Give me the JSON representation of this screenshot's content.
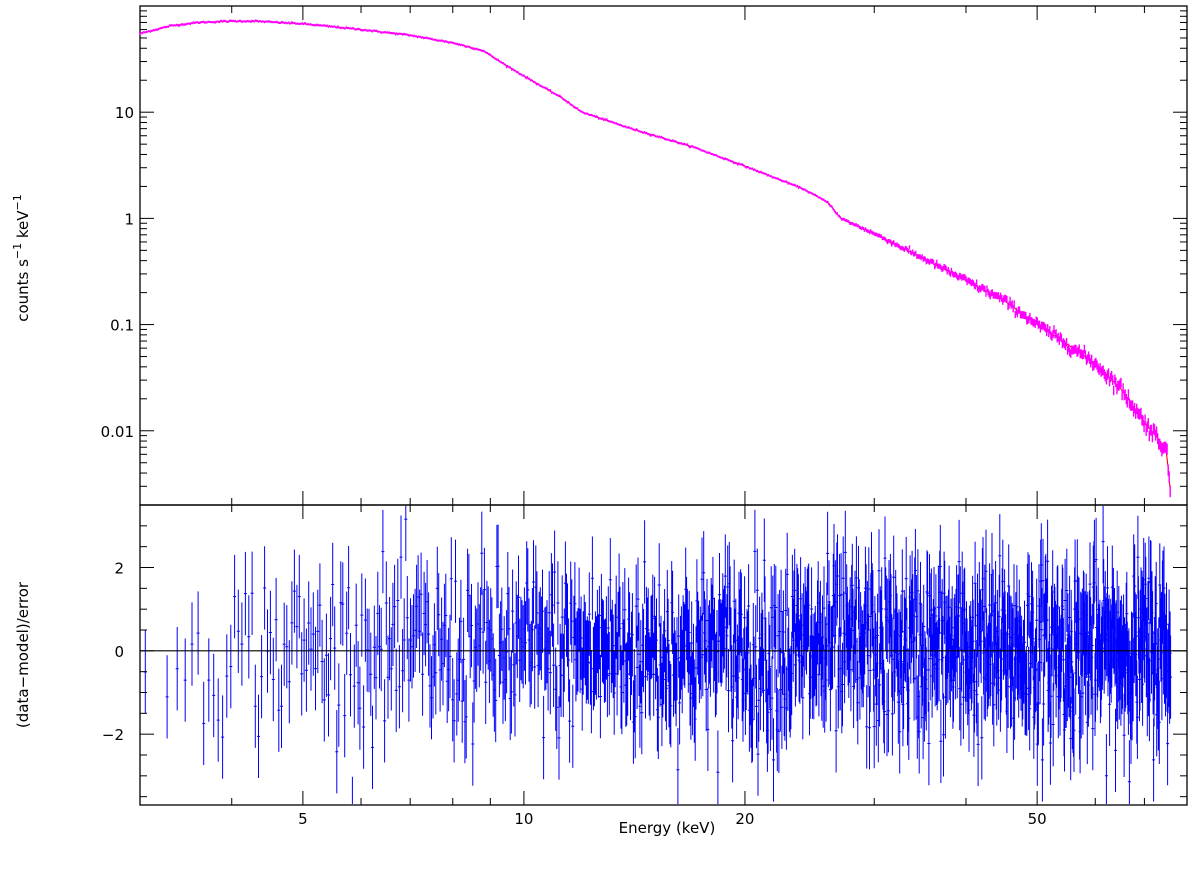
{
  "chart_data": [
    {
      "type": "line",
      "panel": "spectrum",
      "xlabel": "Energy (keV)",
      "ylabel_base": "counts s",
      "ylabel_mid": " keV",
      "ylabel_sup": "−1",
      "xscale": "log",
      "yscale": "log",
      "xlim": [
        3.0,
        80.0
      ],
      "ylim": [
        0.002,
        100
      ],
      "x_ticks": [
        5,
        10,
        20,
        50
      ],
      "y_ticks": [
        {
          "value": 10,
          "label": "10"
        },
        {
          "value": 1,
          "label": "1"
        },
        {
          "value": 0.1,
          "label": "0.1"
        },
        {
          "value": 0.01,
          "label": "0.01"
        }
      ],
      "series": [
        {
          "color": "#ff00ff",
          "x": [
            3.0,
            3.3,
            3.6,
            4.0,
            4.3,
            5.0,
            6.0,
            7.0,
            8.0,
            8.8,
            9.5,
            10.5,
            11.2,
            12.0,
            14.0,
            17.0,
            20.0,
            24.0,
            26.0,
            27.0,
            30.0,
            35.0,
            40.0,
            45.0,
            50.0,
            55.0,
            60.0,
            65.0,
            70.0,
            73.0,
            75.0,
            76.0
          ],
          "y": [
            55,
            65,
            70,
            72,
            72,
            68,
            60,
            53,
            45,
            38,
            27,
            18,
            14,
            10,
            7,
            4.7,
            3.1,
            1.9,
            1.4,
            1.0,
            0.72,
            0.42,
            0.26,
            0.17,
            0.1,
            0.065,
            0.043,
            0.025,
            0.012,
            0.0085,
            0.0065,
            0.0025
          ]
        }
      ],
      "model_color": "#ff0000"
    },
    {
      "type": "scatter",
      "panel": "residuals",
      "ylabel": "(data−model)/error",
      "xscale": "log",
      "xlim": [
        3.0,
        80.0
      ],
      "ylim": [
        -3.7,
        3.5
      ],
      "y_ticks": [
        {
          "value": 2,
          "label": "2"
        },
        {
          "value": 0,
          "label": "0"
        },
        {
          "value": -2,
          "label": "−2"
        }
      ],
      "reference_line": 0,
      "errorbar_color": "#0000ff",
      "residual_model": {
        "n_points": 1100,
        "x_range": [
          3.05,
          76.0
        ],
        "sigma": 1.0,
        "error_halfwidth": 1.0
      }
    }
  ]
}
